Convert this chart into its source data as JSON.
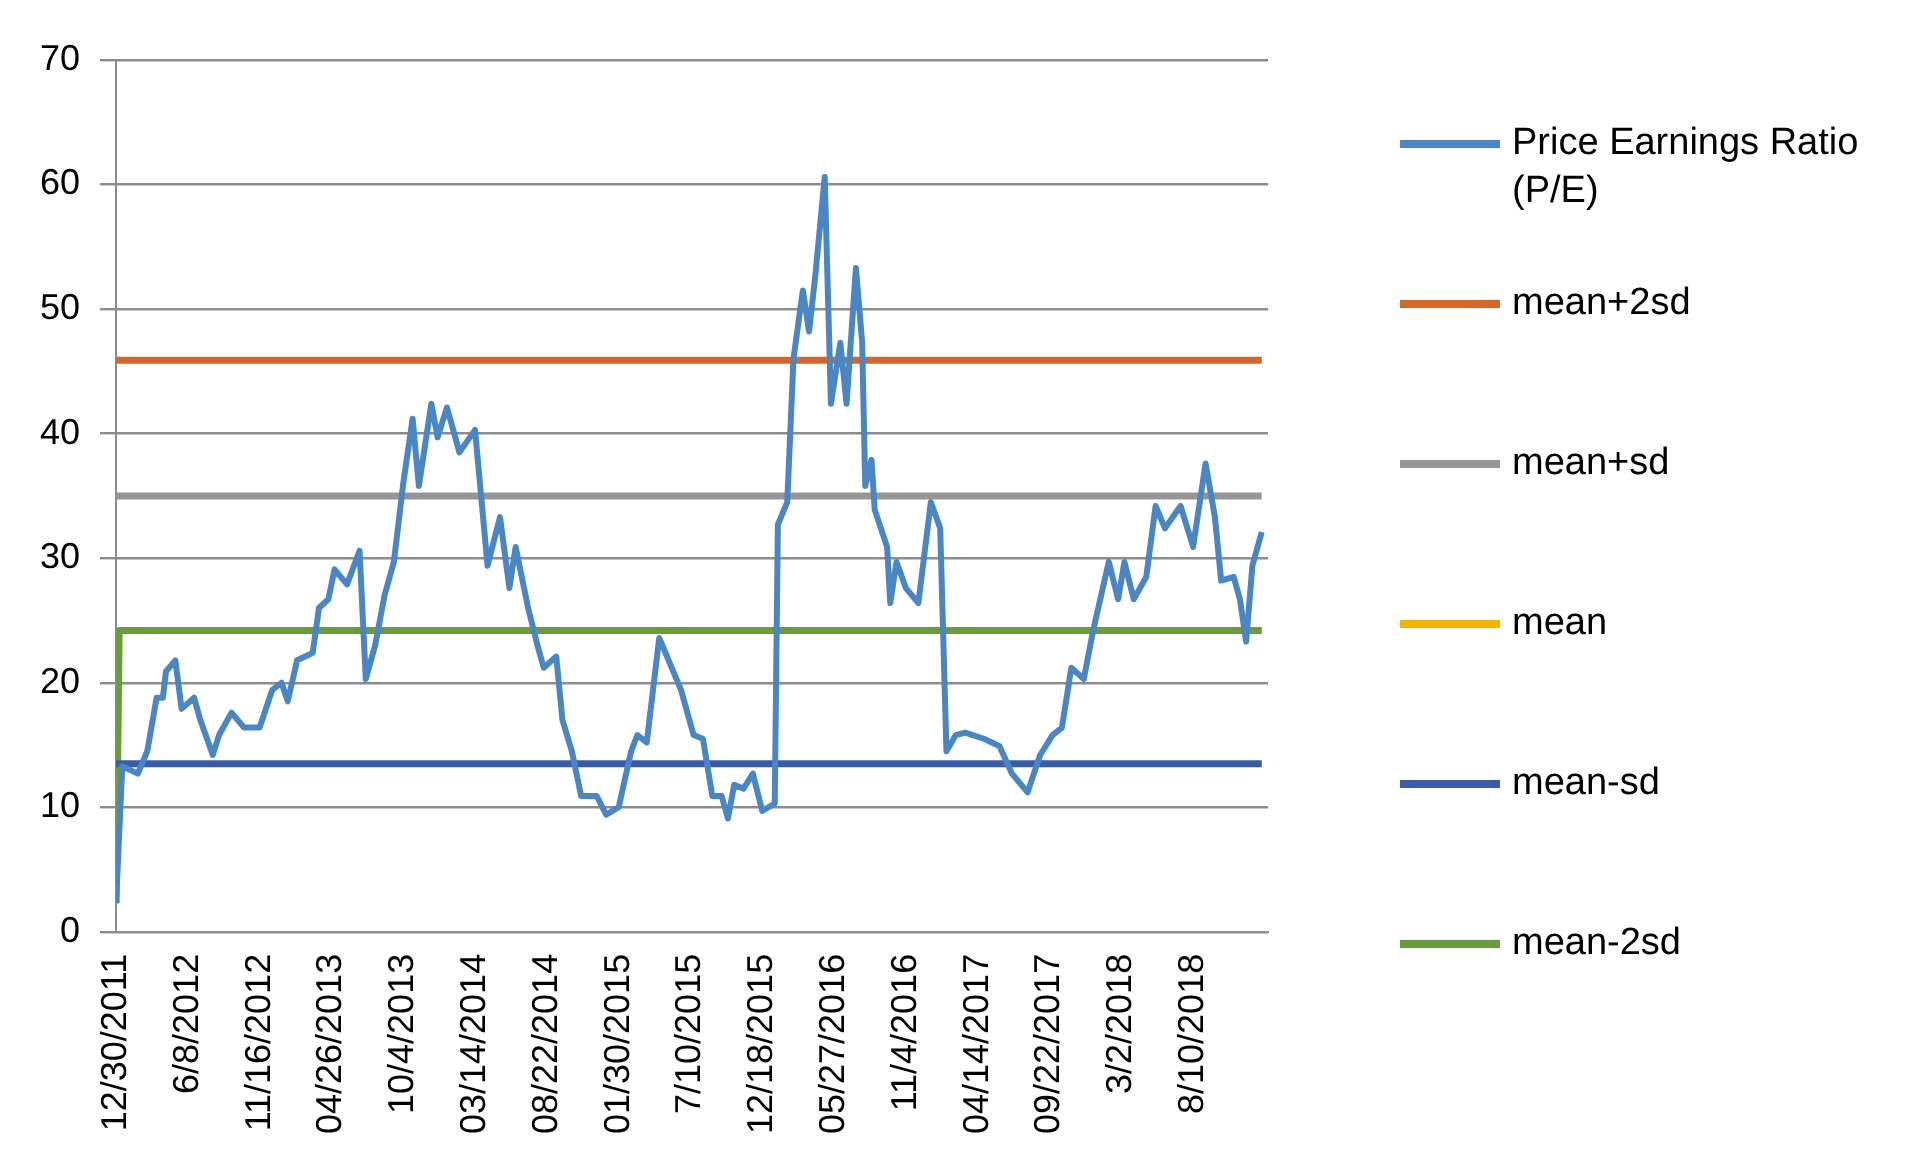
{
  "chart_data": {
    "type": "line",
    "legend": "right",
    "grid": "y",
    "marker": "none",
    "line_style": "solid",
    "xlim": [
      "2011-12-30",
      "2019-01-25"
    ],
    "xticks": [
      {
        "value": "2011-12-30",
        "label": "12/30/2011"
      },
      {
        "value": "2012-06-08",
        "label": "6/8/2012"
      },
      {
        "value": "2012-11-16",
        "label": "11/16/2012"
      },
      {
        "value": "2013-04-26",
        "label": "04/26/2013"
      },
      {
        "value": "2013-10-04",
        "label": "10/4/2013"
      },
      {
        "value": "2014-03-14",
        "label": "03/14/2014"
      },
      {
        "value": "2014-08-22",
        "label": "08/22/2014"
      },
      {
        "value": "2015-01-30",
        "label": "01/30/2015"
      },
      {
        "value": "2015-07-10",
        "label": "7/10/2015"
      },
      {
        "value": "2015-12-18",
        "label": "12/18/2015"
      },
      {
        "value": "2016-05-27",
        "label": "05/27/2016"
      },
      {
        "value": "2016-11-04",
        "label": "11/4/2016"
      },
      {
        "value": "2017-04-14",
        "label": "04/14/2017"
      },
      {
        "value": "2017-09-22",
        "label": "09/22/2017"
      },
      {
        "value": "2018-03-02",
        "label": "3/2/2018"
      },
      {
        "value": "2018-08-10",
        "label": "8/10/2018"
      }
    ],
    "ylim": [
      0,
      70
    ],
    "yticks": [
      0,
      10,
      20,
      30,
      40,
      50,
      60,
      70
    ],
    "series": [
      {
        "name": "Price Earnings Ratio (P/E)",
        "color": "#4a86c4",
        "x": [
          "2011-12-30",
          "2012-01-13",
          "2012-02-17",
          "2012-03-09",
          "2012-03-30",
          "2012-04-13",
          "2012-04-20",
          "2012-05-11",
          "2012-05-25",
          "2012-06-22",
          "2012-07-06",
          "2012-08-03",
          "2012-08-17",
          "2012-09-14",
          "2012-10-12",
          "2012-11-16",
          "2012-12-14",
          "2013-01-04",
          "2013-01-18",
          "2013-02-08",
          "2013-03-15",
          "2013-03-29",
          "2013-04-19",
          "2013-05-03",
          "2013-05-31",
          "2013-06-28",
          "2013-07-12",
          "2013-08-02",
          "2013-08-23",
          "2013-09-13",
          "2013-10-04",
          "2013-10-25",
          "2013-11-08",
          "2013-12-06",
          "2013-12-20",
          "2014-01-10",
          "2014-02-07",
          "2014-03-14",
          "2014-04-11",
          "2014-05-09",
          "2014-05-30",
          "2014-06-13",
          "2014-07-11",
          "2014-08-01",
          "2014-08-15",
          "2014-09-12",
          "2014-09-26",
          "2014-10-17",
          "2014-11-07",
          "2014-12-12",
          "2015-01-02",
          "2015-01-30",
          "2015-02-27",
          "2015-03-13",
          "2015-04-03",
          "2015-05-01",
          "2015-05-22",
          "2015-06-19",
          "2015-07-17",
          "2015-08-07",
          "2015-08-28",
          "2015-09-18",
          "2015-10-02",
          "2015-10-16",
          "2015-11-06",
          "2015-11-27",
          "2015-12-18",
          "2016-01-15",
          "2016-01-22",
          "2016-02-12",
          "2016-02-26",
          "2016-03-18",
          "2016-04-01",
          "2016-04-15",
          "2016-05-06",
          "2016-05-20",
          "2016-06-10",
          "2016-06-24",
          "2016-07-15",
          "2016-07-29",
          "2016-08-05",
          "2016-08-19",
          "2016-08-26",
          "2016-09-23",
          "2016-09-30",
          "2016-10-14",
          "2016-11-04",
          "2016-12-02",
          "2016-12-30",
          "2017-01-20",
          "2017-02-03",
          "2017-02-24",
          "2017-03-17",
          "2017-04-28",
          "2017-06-02",
          "2017-06-30",
          "2017-08-04",
          "2017-09-01",
          "2017-09-29",
          "2017-10-20",
          "2017-11-10",
          "2017-12-08",
          "2017-12-29",
          "2018-02-02",
          "2018-02-23",
          "2018-03-09",
          "2018-03-30",
          "2018-04-27",
          "2018-05-18",
          "2018-06-08",
          "2018-07-13",
          "2018-08-10",
          "2018-09-07",
          "2018-09-28",
          "2018-10-12",
          "2018-11-09",
          "2018-11-23",
          "2018-12-07",
          "2018-12-21",
          "2019-01-11"
        ],
        "values": [
          2.3,
          13.3,
          12.7,
          14.5,
          18.8,
          18.8,
          20.9,
          21.8,
          17.9,
          18.8,
          17,
          14.2,
          15.8,
          17.6,
          16.4,
          16.4,
          19.4,
          20,
          18.5,
          21.8,
          22.4,
          26,
          26.7,
          29.1,
          27.9,
          30.6,
          20.3,
          23,
          27,
          29.7,
          36,
          41.2,
          35.8,
          42.4,
          39.7,
          42.1,
          38.5,
          40.3,
          29.4,
          33.3,
          27.6,
          30.9,
          26,
          23,
          21.2,
          22.1,
          17,
          14.5,
          10.9,
          10.9,
          9.4,
          10,
          14.5,
          15.8,
          15.2,
          23.6,
          21.8,
          19.4,
          15.8,
          15.5,
          10.9,
          10.9,
          9.1,
          11.8,
          11.5,
          12.7,
          9.7,
          10.3,
          32.7,
          34.5,
          46,
          51.5,
          48.2,
          52.7,
          60.6,
          42.4,
          47.3,
          42.4,
          53.3,
          47.3,
          35.8,
          37.9,
          33.9,
          30.9,
          26.4,
          29.7,
          27.6,
          26.4,
          34.5,
          32.4,
          14.5,
          15.8,
          16,
          15.5,
          14.9,
          12.7,
          11.2,
          14.2,
          15.8,
          16.4,
          21.2,
          20.3,
          24.2,
          29.7,
          26.7,
          29.7,
          26.7,
          28.5,
          34.2,
          32.4,
          34.2,
          30.9,
          37.6,
          33.3,
          28.2,
          28.5,
          26.7,
          23.3,
          29.4,
          32.1
        ]
      },
      {
        "name": "mean+2sd",
        "color": "#d2692a",
        "x": [
          "2011-12-30",
          "2019-01-11"
        ],
        "values": [
          45.9,
          45.9
        ]
      },
      {
        "name": "mean+sd",
        "color": "#969696",
        "x": [
          "2011-12-30",
          "2019-01-11"
        ],
        "values": [
          35,
          35
        ]
      },
      {
        "name": "mean",
        "color": "#f2b400"
      },
      {
        "name": "mean-sd",
        "color": "#3a5ca8",
        "x": [
          "2011-12-30",
          "2019-01-11"
        ],
        "values": [
          13.5,
          13.5
        ]
      },
      {
        "name": "mean-2sd",
        "color": "#6a9c3c",
        "x": [
          "2011-12-30",
          "2012-01-06",
          "2019-01-11"
        ],
        "values": [
          2.3,
          24.2,
          24.2
        ]
      }
    ]
  }
}
